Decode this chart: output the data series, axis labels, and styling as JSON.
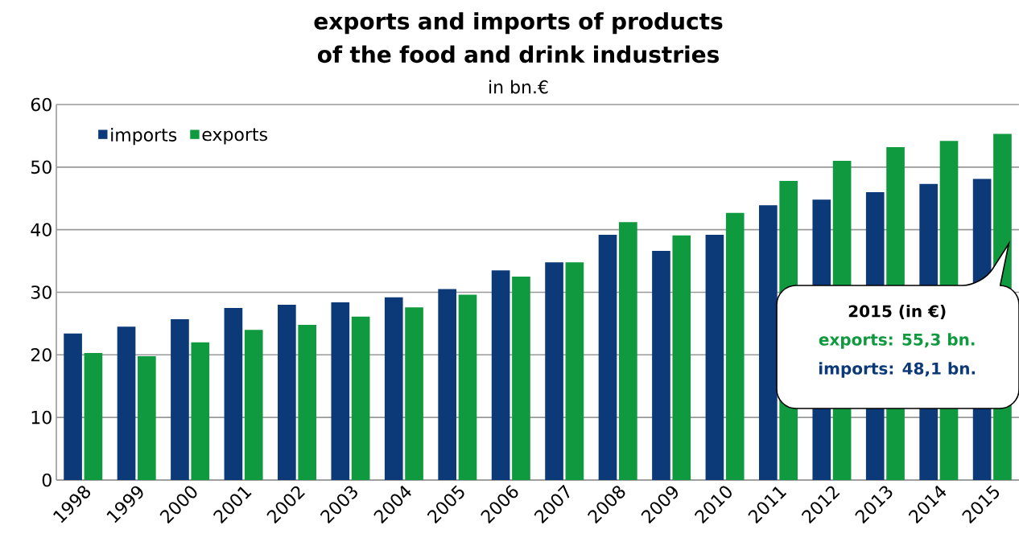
{
  "chart_data": {
    "type": "bar",
    "title": "exports and imports of products of the food and drink industries",
    "subtitle": "in bn.€",
    "categories": [
      "1998",
      "1999",
      "2000",
      "2001",
      "2002",
      "2003",
      "2004",
      "2005",
      "2006",
      "2007",
      "2008",
      "2009",
      "2010",
      "2011",
      "2012",
      "2013",
      "2014",
      "2015"
    ],
    "series": [
      {
        "name": "imports",
        "color": "#0c3a78",
        "values": [
          23.4,
          24.5,
          25.7,
          27.5,
          28.0,
          28.4,
          29.2,
          30.5,
          33.5,
          34.8,
          39.2,
          36.6,
          39.2,
          43.9,
          44.8,
          46.0,
          47.3,
          48.1
        ]
      },
      {
        "name": "exports",
        "color": "#109a3f",
        "values": [
          20.3,
          19.8,
          22.0,
          24.0,
          24.8,
          26.1,
          27.6,
          29.6,
          32.5,
          34.8,
          41.2,
          39.1,
          42.7,
          47.8,
          51.0,
          53.2,
          54.2,
          55.3
        ]
      }
    ],
    "ylim": [
      0,
      60
    ],
    "yticks": [
      0,
      10,
      20,
      30,
      40,
      50,
      60
    ],
    "grid": "y",
    "legend": "top left",
    "annotations": [
      "2015 (in €)",
      "exports: 55,3 bn.",
      "imports: 48,1 bn."
    ]
  }
}
